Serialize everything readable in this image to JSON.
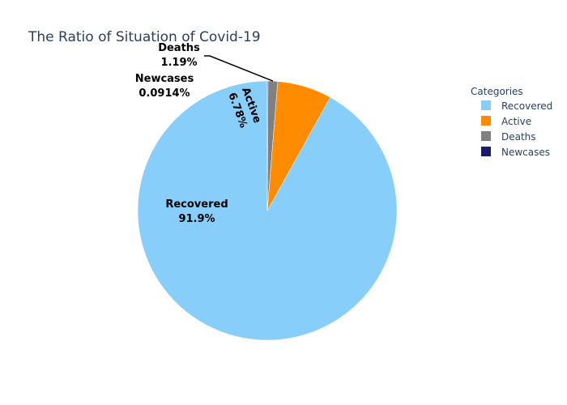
{
  "chart_data": {
    "type": "pie",
    "title": "The Ratio of Situation of Covid-19",
    "legend": {
      "title": "Categories",
      "placement": "right"
    },
    "slices": [
      {
        "label": "Recovered",
        "value": 91.9,
        "percent_text": "91.9%",
        "color": "#87cefa"
      },
      {
        "label": "Active",
        "value": 6.78,
        "percent_text": "6.78%",
        "color": "#ff8c00"
      },
      {
        "label": "Deaths",
        "value": 1.19,
        "percent_text": "1.19%",
        "color": "#808080"
      },
      {
        "label": "Newcases",
        "value": 0.0914,
        "percent_text": "0.0914%",
        "color": "#191970"
      }
    ]
  }
}
